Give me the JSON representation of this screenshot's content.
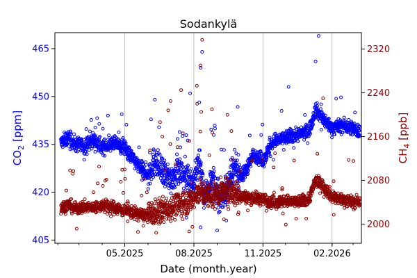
{
  "chart_data": {
    "type": "scatter",
    "title": "Sodankylä",
    "xlabel": "Date (month.year)",
    "ylabel_left": {
      "base": "CO",
      "sub": "2",
      "unit": " [ppm]"
    },
    "ylabel_right": {
      "base": "CH",
      "sub": "4",
      "unit": " [ppb]"
    },
    "xlim": [
      "2025-01-28",
      "2026-03-12"
    ],
    "x_ticks": [
      {
        "date": "2025-05-01",
        "label": "05.2025"
      },
      {
        "date": "2025-08-01",
        "label": "08.2025"
      },
      {
        "date": "2025-11-01",
        "label": "11.2025"
      },
      {
        "date": "2026-02-01",
        "label": "02.2026"
      }
    ],
    "ylim_left": [
      404,
      470
    ],
    "ylim_right": [
      1965,
      2350
    ],
    "yticks_left": [
      "405",
      "420",
      "435",
      "450",
      "465"
    ],
    "yticks_right": [
      "2000",
      "2080",
      "2160",
      "2240",
      "2320"
    ],
    "grid": "vertical at x ticks",
    "colors": {
      "co2": "#0000ff",
      "ch4": "#8b0000",
      "grid": "#b0b0b0"
    },
    "series": [
      {
        "key": "co2",
        "axis": "left",
        "points": [
          [
            "2025-02-05",
            435.5
          ],
          [
            "2025-02-15",
            437.0
          ],
          [
            "2025-02-25",
            435.0
          ],
          [
            "2025-03-10",
            434.5
          ],
          [
            "2025-03-20",
            436.5
          ],
          [
            "2025-04-01",
            434.0
          ],
          [
            "2025-04-15",
            435.5
          ],
          [
            "2025-05-01",
            434.0
          ],
          [
            "2025-05-10",
            431.0
          ],
          [
            "2025-05-20",
            428.0
          ],
          [
            "2025-06-01",
            425.0
          ],
          [
            "2025-06-10",
            430.0
          ],
          [
            "2025-06-20",
            426.0
          ],
          [
            "2025-07-01",
            424.0
          ],
          [
            "2025-07-10",
            427.0
          ],
          [
            "2025-07-20",
            425.0
          ],
          [
            "2025-08-01",
            423.0
          ],
          [
            "2025-08-08",
            430.0
          ],
          [
            "2025-08-15",
            418.0
          ],
          [
            "2025-08-25",
            424.0
          ],
          [
            "2025-09-05",
            418.0
          ],
          [
            "2025-09-15",
            421.0
          ],
          [
            "2025-09-25",
            428.0
          ],
          [
            "2025-10-05",
            425.0
          ],
          [
            "2025-10-20",
            432.0
          ],
          [
            "2025-11-01",
            430.0
          ],
          [
            "2025-11-15",
            436.0
          ],
          [
            "2025-12-01",
            437.0
          ],
          [
            "2025-12-15",
            438.0
          ],
          [
            "2026-01-01",
            439.0
          ],
          [
            "2026-01-10",
            446.0
          ],
          [
            "2026-01-20",
            443.0
          ],
          [
            "2026-02-01",
            440.0
          ],
          [
            "2026-02-15",
            441.0
          ],
          [
            "2026-03-01",
            440.0
          ],
          [
            "2026-03-10",
            439.0
          ]
        ]
      },
      {
        "key": "ch4",
        "axis": "right",
        "points": [
          [
            "2025-02-05",
            2030
          ],
          [
            "2025-02-15",
            2035
          ],
          [
            "2025-02-25",
            2028
          ],
          [
            "2025-03-10",
            2032
          ],
          [
            "2025-03-20",
            2030
          ],
          [
            "2025-04-01",
            2034
          ],
          [
            "2025-04-15",
            2031
          ],
          [
            "2025-05-01",
            2025
          ],
          [
            "2025-05-10",
            2022
          ],
          [
            "2025-05-20",
            2018
          ],
          [
            "2025-06-01",
            2016
          ],
          [
            "2025-06-10",
            2020
          ],
          [
            "2025-06-20",
            2025
          ],
          [
            "2025-07-01",
            2030
          ],
          [
            "2025-07-10",
            2035
          ],
          [
            "2025-07-20",
            2040
          ],
          [
            "2025-08-01",
            2045
          ],
          [
            "2025-08-08",
            2060
          ],
          [
            "2025-08-15",
            2055
          ],
          [
            "2025-08-25",
            2050
          ],
          [
            "2025-09-05",
            2058
          ],
          [
            "2025-09-15",
            2062
          ],
          [
            "2025-09-25",
            2055
          ],
          [
            "2025-10-05",
            2050
          ],
          [
            "2025-10-20",
            2048
          ],
          [
            "2025-11-01",
            2045
          ],
          [
            "2025-11-15",
            2040
          ],
          [
            "2025-12-01",
            2042
          ],
          [
            "2025-12-15",
            2040
          ],
          [
            "2026-01-01",
            2045
          ],
          [
            "2026-01-10",
            2080
          ],
          [
            "2026-01-20",
            2070
          ],
          [
            "2026-02-01",
            2050
          ],
          [
            "2026-02-15",
            2045
          ],
          [
            "2026-03-01",
            2040
          ],
          [
            "2026-03-10",
            2042
          ]
        ]
      }
    ],
    "highlights": [
      {
        "series": "co2",
        "points": [
          [
            "2025-08-12",
            464
          ],
          [
            "2025-08-10",
            459
          ],
          [
            "2025-07-27",
            451
          ],
          [
            "2025-06-10",
            449
          ],
          [
            "2026-01-14",
            469
          ],
          [
            "2026-01-10",
            461
          ],
          [
            "2025-12-05",
            453
          ],
          [
            "2025-08-10",
            409
          ],
          [
            "2025-09-01",
            408
          ],
          [
            "2025-07-22",
            412
          ]
        ]
      },
      {
        "series": "ch4",
        "points": [
          [
            "2025-08-12",
            2337
          ],
          [
            "2025-08-10",
            2290
          ],
          [
            "2025-08-05",
            2253
          ],
          [
            "2025-07-15",
            2245
          ],
          [
            "2025-07-01",
            2225
          ],
          [
            "2025-06-20",
            2160
          ],
          [
            "2025-08-25",
            2210
          ],
          [
            "2025-09-20",
            2170
          ],
          [
            "2026-01-20",
            2230
          ],
          [
            "2025-07-30",
            1995
          ]
        ]
      }
    ]
  }
}
